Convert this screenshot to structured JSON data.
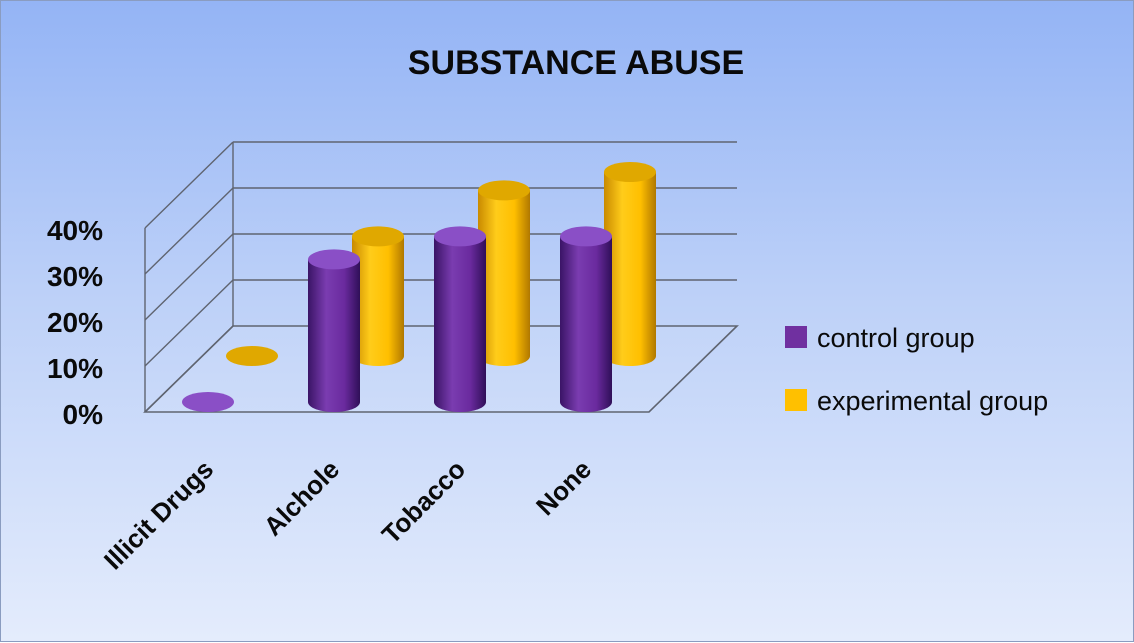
{
  "chart_data": {
    "type": "bar",
    "style": "3d-cylinder",
    "title": "SUBSTANCE ABUSE",
    "categories": [
      "Illicit Drugs",
      "Alchole",
      "Tobacco",
      "None"
    ],
    "y_tick_labels": [
      "0%",
      "10%",
      "20%",
      "30%",
      "40%"
    ],
    "ylim": [
      0,
      40
    ],
    "grid": true,
    "legend_position": "right",
    "series": [
      {
        "name": "control group",
        "color": "#7030a0",
        "values": [
          0,
          31,
          36,
          36
        ]
      },
      {
        "name": "experimental group",
        "color": "#ffc000",
        "values": [
          0,
          26,
          36,
          40
        ]
      }
    ]
  }
}
